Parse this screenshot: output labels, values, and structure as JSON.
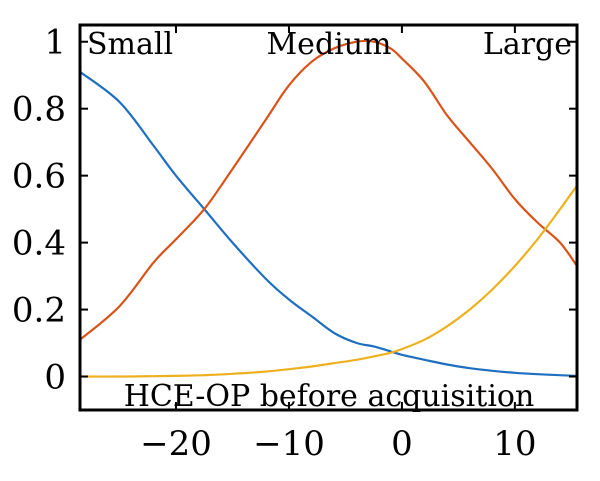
{
  "chart_data": {
    "type": "line",
    "title": "",
    "xlabel": "",
    "ylabel": "",
    "xlim": [
      -28.5,
      15.5
    ],
    "ylim": [
      -0.1,
      1.05
    ],
    "xticks": [
      -20,
      -10,
      0,
      10
    ],
    "xtick_labels": [
      "−20",
      "−10",
      "0",
      "10"
    ],
    "yticks": [
      0,
      0.2,
      0.4,
      0.6,
      0.8,
      1
    ],
    "ytick_labels": [
      "0",
      "0.2",
      "0.4",
      "0.6",
      "0.8",
      "1"
    ],
    "grid": false,
    "legend": "none",
    "annotations": [
      "Small",
      "Medium",
      "Large",
      "HCE-OP before acquisition"
    ],
    "x": [
      -28.5,
      -25,
      -22,
      -20,
      -17.5,
      -15,
      -12,
      -10,
      -8,
      -6,
      -4,
      -2.5,
      -1,
      0,
      2,
      4,
      6,
      8,
      10,
      12,
      14,
      15.5
    ],
    "series": [
      {
        "color": "#1f6fc0",
        "values": [
          0.91,
          0.82,
          0.69,
          0.6,
          0.5,
          0.4,
          0.29,
          0.23,
          0.18,
          0.13,
          0.1,
          0.09,
          0.075,
          0.065,
          0.05,
          0.036,
          0.025,
          0.017,
          0.011,
          0.007,
          0.004,
          0.002
        ]
      },
      {
        "color": "#d95319",
        "values": [
          0.11,
          0.21,
          0.34,
          0.41,
          0.5,
          0.62,
          0.77,
          0.87,
          0.94,
          0.98,
          1.0,
          1.0,
          0.98,
          0.95,
          0.88,
          0.78,
          0.7,
          0.62,
          0.53,
          0.46,
          0.4,
          0.33
        ]
      },
      {
        "color": "#edb120",
        "values": [
          0.0,
          0.0,
          0.001,
          0.002,
          0.004,
          0.008,
          0.015,
          0.022,
          0.03,
          0.04,
          0.05,
          0.06,
          0.071,
          0.082,
          0.11,
          0.15,
          0.2,
          0.26,
          0.33,
          0.41,
          0.5,
          0.57
        ]
      }
    ]
  }
}
